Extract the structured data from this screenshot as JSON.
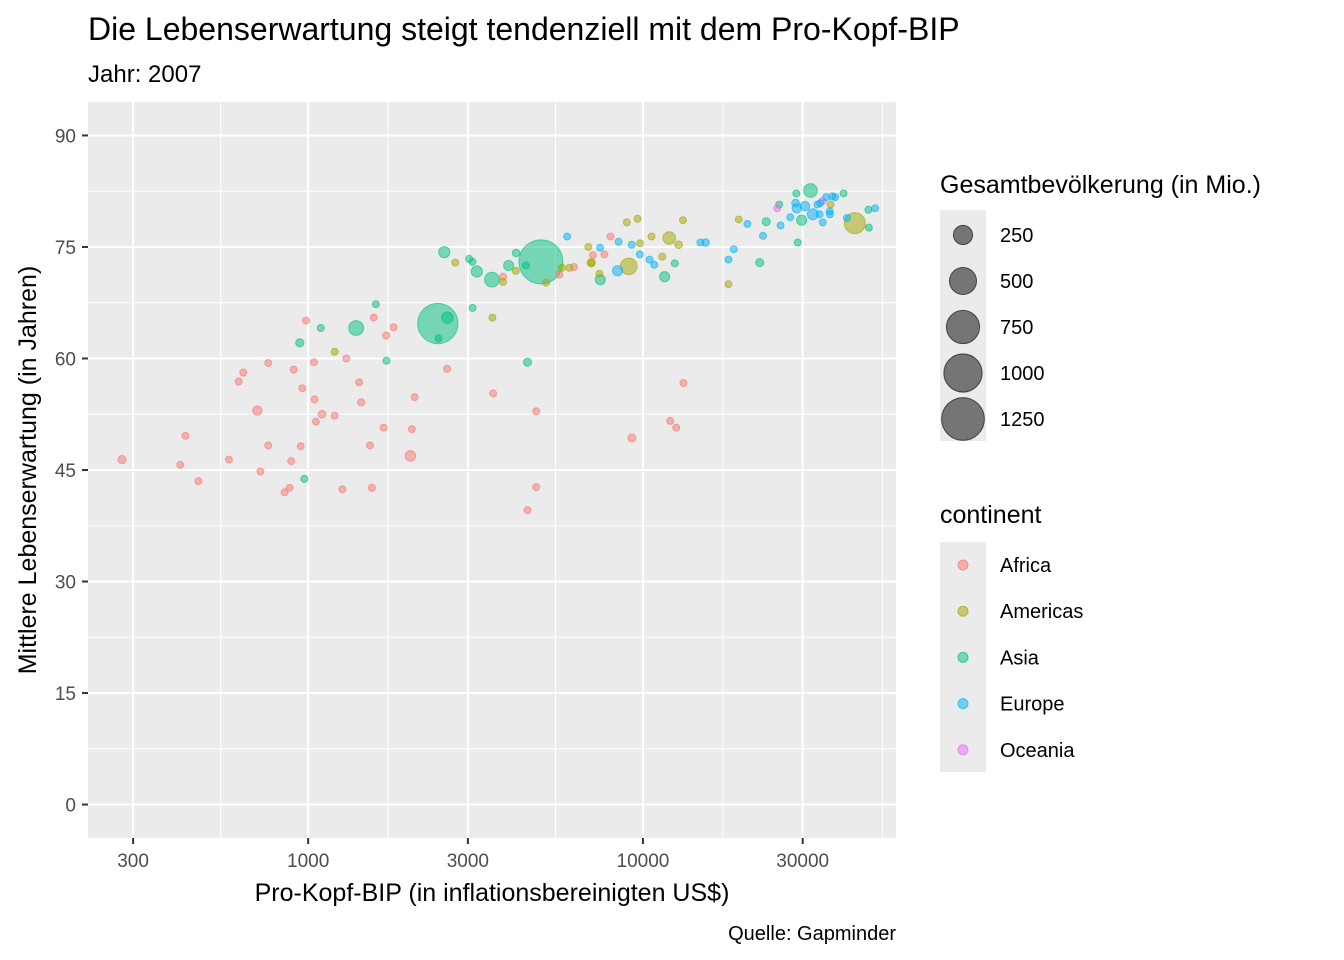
{
  "chart_data": {
    "type": "scatter",
    "title": "Die Lebenserwartung steigt tendenziell mit dem Pro-Kopf-BIP",
    "subtitle": "Jahr: 2007",
    "xlabel": "Pro-Kopf-BIP (in inflationsbereinigten US$)",
    "ylabel": "Mittlere Lebenserwartung (in Jahren)",
    "caption": "Quelle: Gapminder",
    "x_scale": "log10",
    "xlim": [
      220,
      57000
    ],
    "ylim": [
      -4.5,
      94.5
    ],
    "x_ticks": [
      300,
      1000,
      3000,
      10000,
      30000
    ],
    "x_tick_labels": [
      "300",
      "1000",
      "3000",
      "10000",
      "30000"
    ],
    "y_ticks": [
      0,
      15,
      30,
      45,
      60,
      75,
      90
    ],
    "y_tick_labels": [
      "0",
      "15",
      "30",
      "45",
      "60",
      "75",
      "90"
    ],
    "grid": true,
    "panel_background": "#ebebeb",
    "point_alpha": 0.5,
    "legend_placement": "right",
    "size_legend": {
      "title": "Gesamtbevölkerung (in Mio.)",
      "values": [
        250,
        500,
        750,
        1000,
        1250
      ],
      "labels": [
        "250",
        "500",
        "750",
        "1000",
        "1250"
      ]
    },
    "color_legend": {
      "title": "continent",
      "entries": [
        {
          "name": "Africa",
          "color": "#F8766D"
        },
        {
          "name": "Americas",
          "color": "#A3A500"
        },
        {
          "name": "Asia",
          "color": "#00BF7D"
        },
        {
          "name": "Europe",
          "color": "#00B0F6"
        },
        {
          "name": "Oceania",
          "color": "#E76BF3"
        }
      ]
    },
    "series": [
      {
        "name": "Africa",
        "color": "#F8766D",
        "points": [
          {
            "x": 278,
            "y": 46.4,
            "pop": 45
          },
          {
            "x": 415,
            "y": 45.7,
            "pop": 13
          },
          {
            "x": 430,
            "y": 49.6,
            "pop": 17
          },
          {
            "x": 470,
            "y": 43.5,
            "pop": 20
          },
          {
            "x": 580,
            "y": 46.4,
            "pop": 10
          },
          {
            "x": 620,
            "y": 56.9,
            "pop": 19
          },
          {
            "x": 640,
            "y": 58.1,
            "pop": 12
          },
          {
            "x": 705,
            "y": 53.0,
            "pop": 60
          },
          {
            "x": 720,
            "y": 44.8,
            "pop": 13
          },
          {
            "x": 760,
            "y": 48.3,
            "pop": 20
          },
          {
            "x": 760,
            "y": 59.4,
            "pop": 9
          },
          {
            "x": 850,
            "y": 42.0,
            "pop": 30
          },
          {
            "x": 880,
            "y": 42.6,
            "pop": 13
          },
          {
            "x": 890,
            "y": 46.2,
            "pop": 20
          },
          {
            "x": 905,
            "y": 58.5,
            "pop": 16
          },
          {
            "x": 950,
            "y": 48.2,
            "pop": 17
          },
          {
            "x": 960,
            "y": 56.0,
            "pop": 20
          },
          {
            "x": 985,
            "y": 65.1,
            "pop": 6
          },
          {
            "x": 1040,
            "y": 59.5,
            "pop": 28
          },
          {
            "x": 1045,
            "y": 54.5,
            "pop": 20
          },
          {
            "x": 1055,
            "y": 51.5,
            "pop": 28
          },
          {
            "x": 1100,
            "y": 52.5,
            "pop": 40
          },
          {
            "x": 1200,
            "y": 52.3,
            "pop": 20
          },
          {
            "x": 1265,
            "y": 42.4,
            "pop": 20
          },
          {
            "x": 1300,
            "y": 60.0,
            "pop": 28
          },
          {
            "x": 1420,
            "y": 56.8,
            "pop": 16
          },
          {
            "x": 1440,
            "y": 54.1,
            "pop": 35
          },
          {
            "x": 1530,
            "y": 48.3,
            "pop": 20
          },
          {
            "x": 1550,
            "y": 42.6,
            "pop": 8
          },
          {
            "x": 1570,
            "y": 65.5,
            "pop": 6
          },
          {
            "x": 1680,
            "y": 50.7,
            "pop": 20
          },
          {
            "x": 1710,
            "y": 63.1,
            "pop": 20
          },
          {
            "x": 1800,
            "y": 64.2,
            "pop": 12
          },
          {
            "x": 2020,
            "y": 46.9,
            "pop": 76
          },
          {
            "x": 2040,
            "y": 50.5,
            "pop": 20
          },
          {
            "x": 2080,
            "y": 54.8,
            "pop": 4
          },
          {
            "x": 2600,
            "y": 58.6,
            "pop": 35
          },
          {
            "x": 3570,
            "y": 55.3,
            "pop": 10
          },
          {
            "x": 3820,
            "y": 71.0,
            "pop": 34
          },
          {
            "x": 4520,
            "y": 39.6,
            "pop": 8
          },
          {
            "x": 4800,
            "y": 52.9,
            "pop": 8
          },
          {
            "x": 4800,
            "y": 42.7,
            "pop": 18
          },
          {
            "x": 5630,
            "y": 71.3,
            "pop": 34
          },
          {
            "x": 6220,
            "y": 72.3,
            "pop": 6
          },
          {
            "x": 7090,
            "y": 73.9,
            "pop": 10
          },
          {
            "x": 7670,
            "y": 74.0,
            "pop": 6
          },
          {
            "x": 8000,
            "y": 76.4,
            "pop": 2
          },
          {
            "x": 9270,
            "y": 49.3,
            "pop": 44
          },
          {
            "x": 12060,
            "y": 51.6,
            "pop": 6
          },
          {
            "x": 12570,
            "y": 50.7,
            "pop": 6
          },
          {
            "x": 13210,
            "y": 56.7,
            "pop": 6
          }
        ]
      },
      {
        "name": "Americas",
        "color": "#A3A500",
        "points": [
          {
            "x": 1200,
            "y": 60.9,
            "pop": 10
          },
          {
            "x": 2750,
            "y": 72.9,
            "pop": 12
          },
          {
            "x": 3550,
            "y": 65.5,
            "pop": 9
          },
          {
            "x": 3820,
            "y": 70.3,
            "pop": 13
          },
          {
            "x": 4170,
            "y": 71.8,
            "pop": 10
          },
          {
            "x": 5140,
            "y": 70.2,
            "pop": 10
          },
          {
            "x": 5730,
            "y": 72.2,
            "pop": 5
          },
          {
            "x": 6030,
            "y": 72.2,
            "pop": 3
          },
          {
            "x": 6870,
            "y": 75.0,
            "pop": 4
          },
          {
            "x": 7010,
            "y": 72.9,
            "pop": 44
          },
          {
            "x": 7010,
            "y": 72.8,
            "pop": 28
          },
          {
            "x": 7410,
            "y": 71.4,
            "pop": 12
          },
          {
            "x": 8950,
            "y": 78.3,
            "pop": 11
          },
          {
            "x": 9070,
            "y": 72.4,
            "pop": 190
          },
          {
            "x": 9640,
            "y": 78.8,
            "pop": 4
          },
          {
            "x": 9800,
            "y": 75.5,
            "pop": 3
          },
          {
            "x": 10610,
            "y": 76.4,
            "pop": 4
          },
          {
            "x": 11420,
            "y": 73.7,
            "pop": 30
          },
          {
            "x": 11980,
            "y": 76.2,
            "pop": 107
          },
          {
            "x": 12780,
            "y": 75.3,
            "pop": 40
          },
          {
            "x": 13170,
            "y": 78.6,
            "pop": 16
          },
          {
            "x": 18010,
            "y": 70.0,
            "pop": 1
          },
          {
            "x": 19330,
            "y": 78.7,
            "pop": 4
          },
          {
            "x": 36320,
            "y": 80.7,
            "pop": 33
          },
          {
            "x": 42950,
            "y": 78.2,
            "pop": 301
          }
        ]
      },
      {
        "name": "Asia",
        "color": "#00BF7D",
        "points": [
          {
            "x": 974,
            "y": 43.8,
            "pop": 32
          },
          {
            "x": 944,
            "y": 62.1,
            "pop": 47
          },
          {
            "x": 1091,
            "y": 64.1,
            "pop": 28
          },
          {
            "x": 1391,
            "y": 64.1,
            "pop": 150
          },
          {
            "x": 1593,
            "y": 67.3,
            "pop": 26
          },
          {
            "x": 1713,
            "y": 59.7,
            "pop": 19
          },
          {
            "x": 2452,
            "y": 62.7,
            "pop": 28
          },
          {
            "x": 2605,
            "y": 65.5,
            "pop": 91
          },
          {
            "x": 2440,
            "y": 64.7,
            "pop": 1110
          },
          {
            "x": 3096,
            "y": 73.0,
            "pop": 10
          },
          {
            "x": 3025,
            "y": 73.4,
            "pop": 9
          },
          {
            "x": 3190,
            "y": 71.7,
            "pop": 85
          },
          {
            "x": 3540,
            "y": 70.6,
            "pop": 150
          },
          {
            "x": 3098,
            "y": 66.8,
            "pop": 10
          },
          {
            "x": 3970,
            "y": 72.5,
            "pop": 69
          },
          {
            "x": 4180,
            "y": 74.2,
            "pop": 40
          },
          {
            "x": 4470,
            "y": 72.5,
            "pop": 24
          },
          {
            "x": 4520,
            "y": 59.5,
            "pop": 44
          },
          {
            "x": 4959,
            "y": 73.0,
            "pop": 1319
          },
          {
            "x": 2550,
            "y": 74.3,
            "pop": 85
          },
          {
            "x": 7458,
            "y": 70.6,
            "pop": 70
          },
          {
            "x": 11606,
            "y": 71.0,
            "pop": 69
          },
          {
            "x": 12452,
            "y": 72.8,
            "pop": 27
          },
          {
            "x": 22316,
            "y": 72.9,
            "pop": 45
          },
          {
            "x": 23348,
            "y": 78.4,
            "pop": 45
          },
          {
            "x": 25523,
            "y": 80.7,
            "pop": 6
          },
          {
            "x": 28718,
            "y": 82.2,
            "pop": 23
          },
          {
            "x": 29796,
            "y": 78.6,
            "pop": 71
          },
          {
            "x": 31656,
            "y": 82.6,
            "pop": 127
          },
          {
            "x": 29000,
            "y": 75.6,
            "pop": 1
          },
          {
            "x": 39725,
            "y": 82.2,
            "pop": 7
          },
          {
            "x": 47143,
            "y": 80.0,
            "pop": 5
          },
          {
            "x": 47307,
            "y": 77.6,
            "pop": 5
          }
        ]
      },
      {
        "name": "Europe",
        "color": "#00B0F6",
        "points": [
          {
            "x": 5937,
            "y": 76.4,
            "pop": 3
          },
          {
            "x": 7446,
            "y": 74.9,
            "pop": 5
          },
          {
            "x": 8458,
            "y": 75.7,
            "pop": 10
          },
          {
            "x": 9253,
            "y": 75.3,
            "pop": 4
          },
          {
            "x": 9787,
            "y": 74.0,
            "pop": 8
          },
          {
            "x": 10808,
            "y": 72.6,
            "pop": 30
          },
          {
            "x": 10461,
            "y": 73.3,
            "pop": 4
          },
          {
            "x": 8400,
            "y": 71.8,
            "pop": 71
          },
          {
            "x": 14843,
            "y": 75.6,
            "pop": 10
          },
          {
            "x": 15390,
            "y": 75.6,
            "pop": 38
          },
          {
            "x": 18009,
            "y": 73.3,
            "pop": 10
          },
          {
            "x": 18678,
            "y": 74.7,
            "pop": 5
          },
          {
            "x": 20510,
            "y": 78.1,
            "pop": 11
          },
          {
            "x": 22833,
            "y": 76.5,
            "pop": 10
          },
          {
            "x": 25768,
            "y": 77.9,
            "pop": 2
          },
          {
            "x": 27538,
            "y": 79.0,
            "pop": 10
          },
          {
            "x": 28569,
            "y": 80.9,
            "pop": 40
          },
          {
            "x": 28821,
            "y": 80.2,
            "pop": 60
          },
          {
            "x": 30470,
            "y": 80.5,
            "pop": 61
          },
          {
            "x": 32170,
            "y": 79.4,
            "pop": 82
          },
          {
            "x": 33207,
            "y": 80.7,
            "pop": 5
          },
          {
            "x": 33692,
            "y": 79.4,
            "pop": 10
          },
          {
            "x": 33860,
            "y": 80.9,
            "pop": 9
          },
          {
            "x": 34435,
            "y": 78.3,
            "pop": 5
          },
          {
            "x": 35278,
            "y": 81.7,
            "pop": 9
          },
          {
            "x": 36126,
            "y": 79.8,
            "pop": 16
          },
          {
            "x": 36181,
            "y": 79.4,
            "pop": 10
          },
          {
            "x": 36798,
            "y": 81.8,
            "pop": 0.3
          },
          {
            "x": 37506,
            "y": 81.7,
            "pop": 7
          },
          {
            "x": 40676,
            "y": 78.9,
            "pop": 4
          },
          {
            "x": 49357,
            "y": 80.2,
            "pop": 4
          }
        ]
      },
      {
        "name": "Oceania",
        "color": "#E76BF3",
        "points": [
          {
            "x": 25185,
            "y": 80.2,
            "pop": 4
          },
          {
            "x": 34435,
            "y": 81.2,
            "pop": 20
          }
        ]
      }
    ]
  }
}
